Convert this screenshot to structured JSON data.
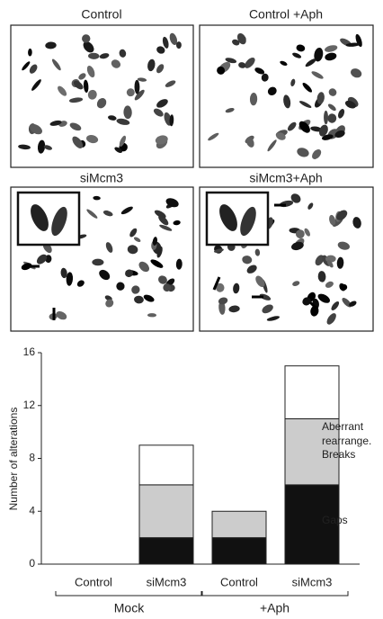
{
  "panels": [
    "Control",
    "Control +Aph",
    "siMcm3",
    "siMcm3+Aph"
  ],
  "chart_data": {
    "type": "stacked_bar",
    "y_label": "Number of alterations",
    "categories": [
      "Control",
      "siMcm3",
      "Control",
      "siMcm3"
    ],
    "groups": [
      "Mock",
      "+Aph"
    ],
    "series": [
      {
        "name": "Gaps",
        "color": "#111111",
        "values": [
          0,
          2,
          2,
          6
        ]
      },
      {
        "name": "Breaks",
        "color": "#cccccc",
        "values": [
          0,
          4,
          2,
          5
        ]
      },
      {
        "name": "Aberrant rearrange.",
        "color": "#ffffff",
        "values": [
          0,
          3,
          0,
          4
        ]
      }
    ],
    "ylim": [
      0,
      16
    ],
    "yticks": [
      0,
      4,
      8,
      12,
      16
    ]
  }
}
